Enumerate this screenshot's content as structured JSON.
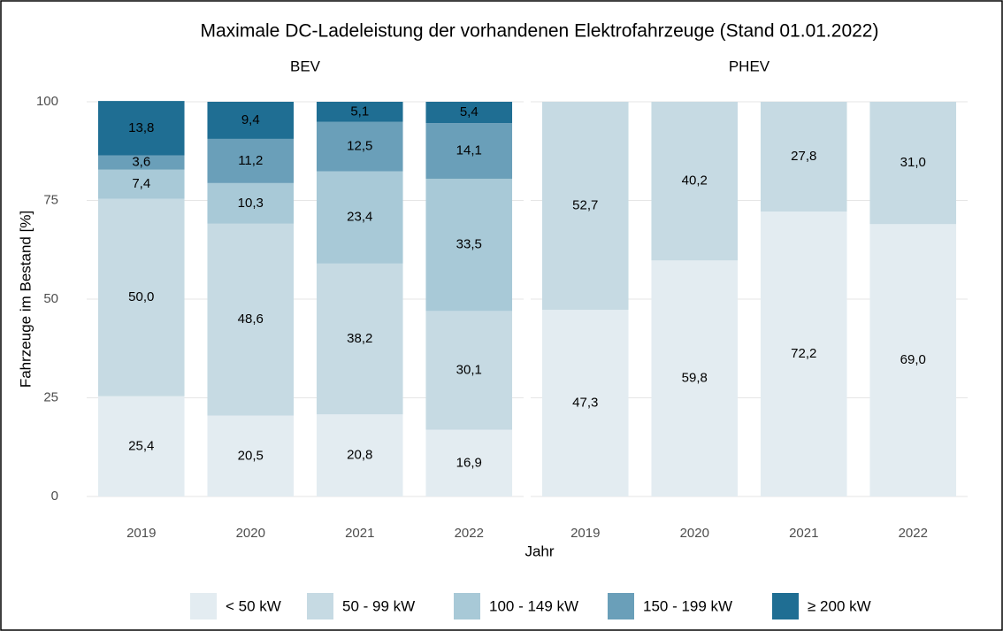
{
  "chart_data": {
    "type": "bar",
    "title": "Maximale DC-Ladeleistung der vorhandenen Elektrofahrzeuge (Stand 01.01.2022)",
    "xlabel": "Jahr",
    "ylabel": "Fahrzeuge im Bestand [%]",
    "ylim": [
      0,
      100
    ],
    "yticks": [
      0,
      25,
      50,
      75,
      100
    ],
    "grid": true,
    "legend": "bottom",
    "series": [
      {
        "name": "< 50 kW",
        "color": "#e3ecf1"
      },
      {
        "name": "50 - 99 kW",
        "color": "#c6dae3"
      },
      {
        "name": "100 - 149 kW",
        "color": "#a8c9d7"
      },
      {
        "name": "150 - 199 kW",
        "color": "#6a9fb9"
      },
      {
        "name": "≥ 200 kW",
        "color": "#1f6e93"
      }
    ],
    "facets": [
      {
        "title": "BEV",
        "categories": [
          "2019",
          "2020",
          "2021",
          "2022"
        ],
        "series": [
          {
            "values": [
              25.4,
              20.5,
              20.8,
              16.9
            ],
            "value_labels": [
              "25,4",
              "20,5",
              "20,8",
              "16,9"
            ]
          },
          {
            "values": [
              50.0,
              48.6,
              38.2,
              30.1
            ],
            "value_labels": [
              "50,0",
              "48,6",
              "38,2",
              "30,1"
            ]
          },
          {
            "values": [
              7.4,
              10.3,
              23.4,
              33.5
            ],
            "value_labels": [
              "7,4",
              "10,3",
              "23,4",
              "33,5"
            ]
          },
          {
            "values": [
              3.6,
              11.2,
              12.5,
              14.1
            ],
            "value_labels": [
              "3,6",
              "11,2",
              "12,5",
              "14,1"
            ]
          },
          {
            "values": [
              13.8,
              9.4,
              5.1,
              5.4
            ],
            "value_labels": [
              "13,8",
              "9,4",
              "5,1",
              "5,4"
            ]
          }
        ]
      },
      {
        "title": "PHEV",
        "categories": [
          "2019",
          "2020",
          "2021",
          "2022"
        ],
        "series": [
          {
            "values": [
              47.3,
              59.8,
              72.2,
              69.0
            ],
            "value_labels": [
              "47,3",
              "59,8",
              "72,2",
              "69,0"
            ]
          },
          {
            "values": [
              52.7,
              40.2,
              27.8,
              31.0
            ],
            "value_labels": [
              "52,7",
              "40,2",
              "27,8",
              "31,0"
            ]
          }
        ]
      }
    ]
  }
}
